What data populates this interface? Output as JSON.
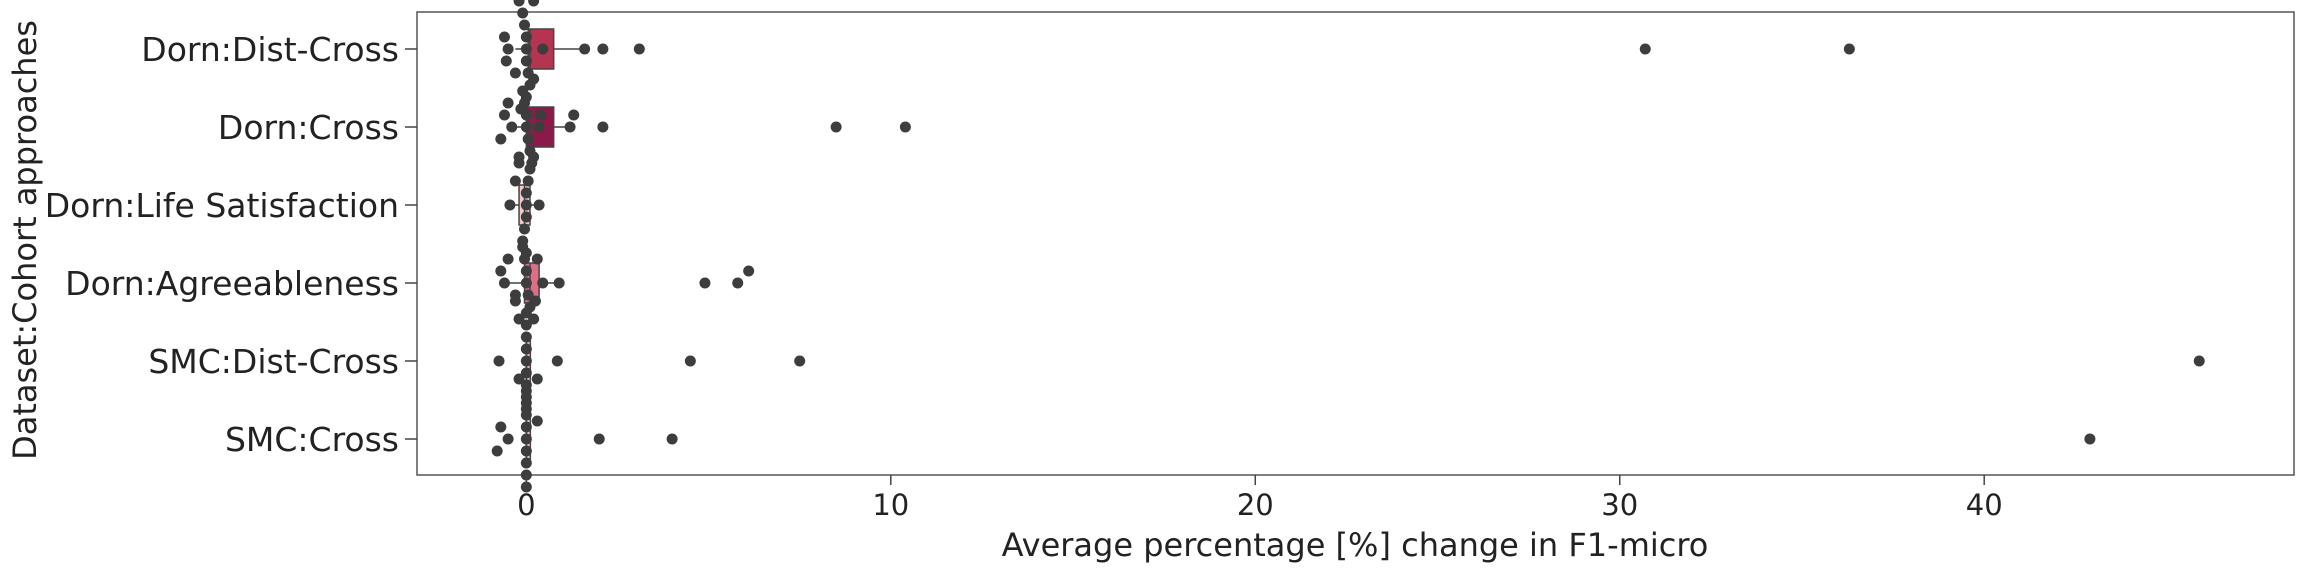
{
  "chart_data": {
    "type": "box+swarm",
    "xlabel": "Average percentage [%] change in F1-micro",
    "ylabel": "Dataset:Cohort approaches",
    "xlim": [
      -3,
      48.5
    ],
    "xticks": [
      0,
      10,
      20,
      30,
      40
    ],
    "grid": false,
    "categories": [
      "Dorn:Dist-Cross",
      "Dorn:Cross",
      "Dorn:Life Satisfaction",
      "Dorn:Agreeableness",
      "SMC:Dist-Cross",
      "SMC:Cross"
    ],
    "boxes": [
      {
        "category": "Dorn:Dist-Cross",
        "q1": 0.05,
        "median": 0.1,
        "q3": 0.75,
        "whisker_low": -0.3,
        "whisker_high": 1.6,
        "color": "#b5344f"
      },
      {
        "category": "Dorn:Cross",
        "q1": 0.0,
        "median": 0.15,
        "q3": 0.75,
        "whisker_low": -0.4,
        "whisker_high": 1.2,
        "color": "#8b1a4a"
      },
      {
        "category": "Dorn:Life Satisfaction",
        "q1": -0.2,
        "median": -0.05,
        "q3": 0.1,
        "whisker_low": -0.5,
        "whisker_high": 0.35,
        "color": "#f2c9c9"
      },
      {
        "category": "Dorn:Agreeableness",
        "q1": -0.05,
        "median": 0.1,
        "q3": 0.35,
        "whisker_low": -0.6,
        "whisker_high": 0.9,
        "color": "#de6e86"
      },
      {
        "category": "SMC:Dist-Cross",
        "q1": 0.0,
        "median": 0.0,
        "q3": 0.05,
        "whisker_low": -0.1,
        "whisker_high": 0.1,
        "color": "#f4b7b7"
      },
      {
        "category": "SMC:Cross",
        "q1": 0.0,
        "median": 0.0,
        "q3": 0.05,
        "whisker_low": -0.1,
        "whisker_high": 0.1,
        "color": "#f2c4c4"
      }
    ],
    "points": [
      {
        "category": "Dorn:Dist-Cross",
        "values": [
          0.0,
          0.0,
          0.0,
          -0.05,
          0.05,
          -0.1,
          0.1,
          -0.2,
          0.2,
          -0.3,
          0.0,
          0.05,
          -0.15,
          0.15,
          -0.5,
          -0.6,
          -0.55,
          0.45,
          1.6,
          2.1,
          3.1,
          30.7,
          36.3
        ]
      },
      {
        "category": "Dorn:Cross",
        "values": [
          0.0,
          0.0,
          0.05,
          -0.05,
          0.1,
          -0.1,
          0.15,
          0.2,
          -0.2,
          -0.4,
          -0.6,
          -0.7,
          -0.5,
          0.35,
          0.4,
          1.2,
          1.3,
          2.1,
          8.5,
          10.4
        ]
      },
      {
        "category": "Dorn:Life Satisfaction",
        "values": [
          0.0,
          0.0,
          0.0,
          0.05,
          -0.05,
          0.1,
          -0.1,
          -0.2,
          0.2,
          -0.3,
          -0.45,
          0.35,
          0.0
        ]
      },
      {
        "category": "Dorn:Agreeableness",
        "values": [
          0.0,
          0.0,
          0.05,
          -0.05,
          0.1,
          -0.1,
          0.2,
          -0.2,
          0.3,
          -0.3,
          0.45,
          -0.6,
          -0.7,
          -0.5,
          0.9,
          4.9,
          5.8,
          6.1
        ]
      },
      {
        "category": "SMC:Dist-Cross",
        "values": [
          0.0,
          0.0,
          0.0,
          0.0,
          0.0,
          0.0,
          0.0,
          0.0,
          0.0,
          0.25,
          -0.3,
          0.3,
          -0.75,
          0.85,
          4.5,
          7.5,
          45.9
        ]
      },
      {
        "category": "SMC:Cross",
        "values": [
          0.0,
          0.0,
          0.0,
          0.0,
          0.0,
          0.0,
          0.0,
          0.0,
          0.0,
          -0.2,
          0.3,
          -0.5,
          -0.7,
          -0.8,
          2.0,
          4.0,
          42.9
        ]
      }
    ]
  }
}
